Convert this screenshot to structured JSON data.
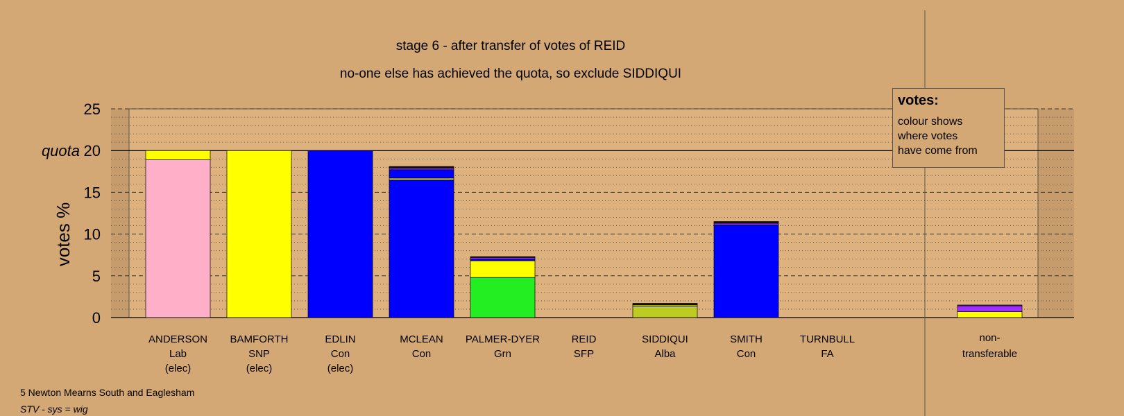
{
  "chart_data": {
    "type": "bar",
    "title": "stage 6 - after transfer of votes of REID",
    "subtitle": "no-one else has achieved the quota, so exclude SIDDIQUI",
    "ylabel": "votes %",
    "quota_label": "quota",
    "quota": 20,
    "ylim": [
      0,
      25
    ],
    "yticks": [
      0,
      5,
      10,
      15,
      20,
      25
    ],
    "categories": [
      {
        "name": "ANDERSON",
        "party": "Lab",
        "status": "(elec)"
      },
      {
        "name": "BAMFORTH",
        "party": "SNP",
        "status": "(elec)"
      },
      {
        "name": "EDLIN",
        "party": "Con",
        "status": "(elec)"
      },
      {
        "name": "MCLEAN",
        "party": "Con",
        "status": ""
      },
      {
        "name": "PALMER-DYER",
        "party": "Grn",
        "status": ""
      },
      {
        "name": "REID",
        "party": "SFP",
        "status": ""
      },
      {
        "name": "SIDDIQUI",
        "party": "Alba",
        "status": ""
      },
      {
        "name": "SMITH",
        "party": "Con",
        "status": ""
      },
      {
        "name": "TURNBULL",
        "party": "FA",
        "status": ""
      }
    ],
    "nontransferable": {
      "line1": "non-",
      "line2": "transferable"
    },
    "stacks": [
      [
        {
          "value": 18.9,
          "color": "#ffb0c8"
        },
        {
          "value": 1.1,
          "color": "#ffff00"
        }
      ],
      [
        {
          "value": 20.0,
          "color": "#ffff00"
        }
      ],
      [
        {
          "value": 20.0,
          "color": "#0000ff"
        }
      ],
      [
        {
          "value": 16.5,
          "color": "#0000ff"
        },
        {
          "value": 0.2,
          "color": "#ffff00"
        },
        {
          "value": 1.0,
          "color": "#0000ff"
        },
        {
          "value": 0.2,
          "color": "#9b30ff"
        },
        {
          "value": 0.2,
          "color": "#111111"
        }
      ],
      [
        {
          "value": 4.8,
          "color": "#22ee22"
        },
        {
          "value": 2.0,
          "color": "#ffff00"
        },
        {
          "value": 0.2,
          "color": "#0000ff"
        },
        {
          "value": 0.2,
          "color": "#9b30ff"
        },
        {
          "value": 0.1,
          "color": "#111111"
        }
      ],
      [],
      [
        {
          "value": 1.3,
          "color": "#bccc20"
        },
        {
          "value": 0.2,
          "color": "#ffff00"
        },
        {
          "value": 0.2,
          "color": "#111111"
        }
      ],
      [
        {
          "value": 11.1,
          "color": "#0000ff"
        },
        {
          "value": 0.2,
          "color": "#9b30ff"
        },
        {
          "value": 0.2,
          "color": "#111111"
        }
      ],
      []
    ],
    "nontransferable_stack": [
      {
        "value": 0.7,
        "color": "#ffff00"
      },
      {
        "value": 0.7,
        "color": "#9b30ff"
      },
      {
        "value": 0.1,
        "color": "#6a0dad"
      }
    ],
    "grid": "dotted minor, dashed major"
  },
  "legend": {
    "title": "votes:",
    "lines": [
      "colour shows",
      "where votes",
      "have come from"
    ]
  },
  "footer": {
    "line1": "5 Newton Mearns South and Eaglesham",
    "line2": "STV - sys = wig"
  }
}
